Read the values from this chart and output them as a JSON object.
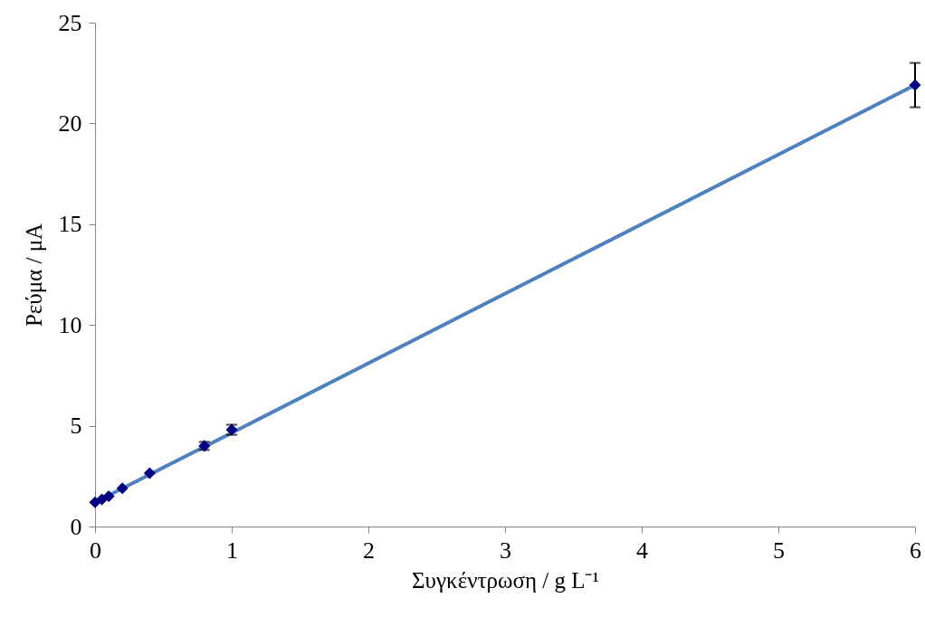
{
  "chart_data": {
    "type": "scatter",
    "xlabel": "Συγκέντρωση / g L⁻¹",
    "ylabel": "Ρεύμα / μA",
    "x": [
      0,
      0.05,
      0.1,
      0.2,
      0.4,
      0.8,
      1.0,
      6
    ],
    "series": [
      {
        "color": "#000080",
        "values": [
          1.2,
          1.35,
          1.5,
          1.9,
          2.65,
          4.0,
          4.8,
          21.9
        ],
        "errors": [
          null,
          null,
          null,
          null,
          null,
          0.2,
          0.25,
          1.1
        ],
        "marker": "diamond"
      },
      {
        "type": "line",
        "color": "#4f81bd",
        "x": [
          0,
          6
        ],
        "values": [
          1.2,
          21.9
        ],
        "line_style": "solid",
        "marker": "none"
      }
    ],
    "xlim": [
      0,
      6
    ],
    "xticks": [
      0,
      1,
      2,
      3,
      4,
      5,
      6
    ],
    "ylim": [
      0,
      25
    ],
    "yticks": [
      0,
      5,
      10,
      15,
      20,
      25
    ],
    "grid": false
  }
}
